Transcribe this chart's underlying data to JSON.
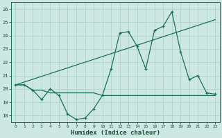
{
  "xlabel": "Humidex (Indice chaleur)",
  "bg_color": "#cce8e0",
  "grid_color": "#aed4cc",
  "line_color": "#1a6e5e",
  "xlim": [
    -0.5,
    23.5
  ],
  "ylim": [
    17.5,
    26.5
  ],
  "yticks": [
    18,
    19,
    20,
    21,
    22,
    23,
    24,
    25,
    26
  ],
  "xticks": [
    0,
    1,
    2,
    3,
    4,
    5,
    6,
    7,
    8,
    9,
    10,
    11,
    12,
    13,
    14,
    15,
    16,
    17,
    18,
    19,
    20,
    21,
    22,
    23
  ],
  "line1_x": [
    0,
    1,
    2,
    3,
    4,
    5,
    6,
    7,
    8,
    9,
    10,
    11,
    12,
    13,
    14,
    15,
    16,
    17,
    18,
    19,
    20,
    21,
    22,
    23
  ],
  "line1_y": [
    20.3,
    20.3,
    19.9,
    19.2,
    20.0,
    19.5,
    18.1,
    17.7,
    17.8,
    18.5,
    19.5,
    21.5,
    24.2,
    24.3,
    23.2,
    21.5,
    24.4,
    24.7,
    25.8,
    22.8,
    20.7,
    21.0,
    19.7,
    19.6
  ],
  "line2_x": [
    0,
    1,
    2,
    3,
    4,
    5,
    6,
    7,
    8,
    9,
    10,
    11,
    12,
    13,
    14,
    15,
    16,
    17,
    18,
    19,
    20,
    21,
    22,
    23
  ],
  "line2_y": [
    20.3,
    20.3,
    19.9,
    19.9,
    19.7,
    19.7,
    19.7,
    19.7,
    19.7,
    19.7,
    19.5,
    19.5,
    19.5,
    19.5,
    19.5,
    19.5,
    19.5,
    19.5,
    19.5,
    19.5,
    19.5,
    19.5,
    19.5,
    19.5
  ],
  "line3_x": [
    0,
    23
  ],
  "line3_y": [
    20.3,
    25.2
  ]
}
